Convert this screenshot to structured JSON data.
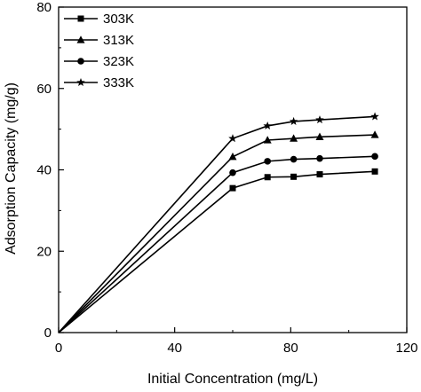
{
  "chart_data": {
    "type": "line",
    "title": "",
    "xlabel": "Initial Concentration (mg/L)",
    "ylabel": "Adsorption Capacity (mg/g)",
    "xlim": [
      0,
      120
    ],
    "ylim": [
      0,
      80
    ],
    "x_ticks": [
      "0",
      "40",
      "80",
      "120"
    ],
    "y_ticks": [
      "0",
      "20",
      "40",
      "60",
      "80"
    ],
    "grid": false,
    "legend_position": "top-left",
    "x": [
      0,
      60,
      72,
      81,
      90,
      109
    ],
    "series": [
      {
        "name": "303K",
        "marker": "square",
        "values": [
          0,
          35.5,
          38.2,
          38.3,
          38.9,
          39.6
        ]
      },
      {
        "name": "313K",
        "marker": "triangle",
        "values": [
          0,
          43.2,
          47.3,
          47.7,
          48.1,
          48.6
        ]
      },
      {
        "name": "323K",
        "marker": "circle",
        "values": [
          0,
          39.3,
          42.1,
          42.6,
          42.8,
          43.3
        ]
      },
      {
        "name": "333K",
        "marker": "star",
        "values": [
          0,
          47.7,
          50.8,
          51.9,
          52.3,
          53.1
        ]
      }
    ],
    "colors": {
      "line": "#000000",
      "axis": "#000000"
    }
  }
}
